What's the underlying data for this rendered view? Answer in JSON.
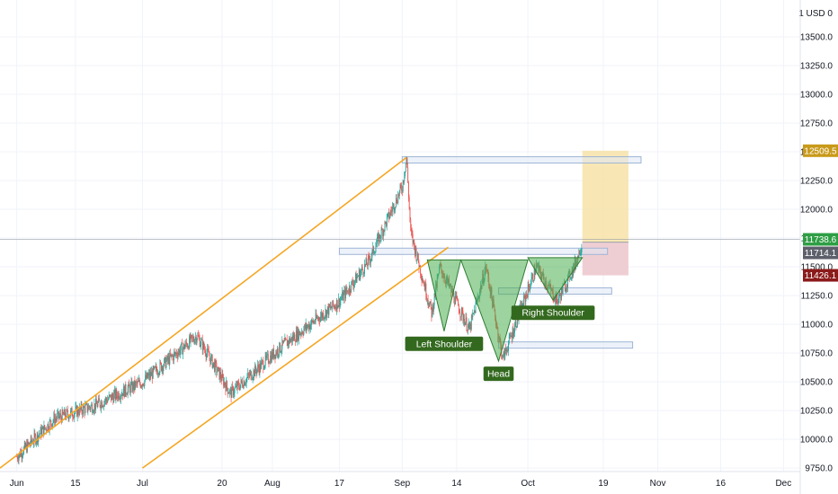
{
  "chart_data": {
    "type": "candlestick",
    "currency_label": "1 USD 0",
    "y_ticks": [
      9750,
      10000,
      10250,
      10500,
      10750,
      11000,
      11250,
      11500,
      11750,
      12000,
      12250,
      12500,
      12750,
      13000,
      13250,
      13500
    ],
    "y_tick_labels": [
      "9750.0",
      "10000.0",
      "10250.0",
      "10500.0",
      "10750.0",
      "11000.0",
      "11250.0",
      "11500.0",
      "11750.0",
      "12000.0",
      "12250.0",
      "12500.0",
      "12750.0",
      "13000.0",
      "13250.0",
      "13500.0"
    ],
    "ylim": [
      9720,
      13820
    ],
    "x_start": "2020-05-28",
    "x_end": "2020-12-05",
    "x_ticks": [
      {
        "date": "2020-06-01",
        "label": "Jun"
      },
      {
        "date": "2020-06-15",
        "label": "15"
      },
      {
        "date": "2020-07-01",
        "label": "Jul"
      },
      {
        "date": "2020-07-20",
        "label": "20"
      },
      {
        "date": "2020-08-01",
        "label": "Aug"
      },
      {
        "date": "2020-08-17",
        "label": "17"
      },
      {
        "date": "2020-09-01",
        "label": "Sep"
      },
      {
        "date": "2020-09-14",
        "label": "14"
      },
      {
        "date": "2020-10-01",
        "label": "Oct"
      },
      {
        "date": "2020-10-19",
        "label": "19"
      },
      {
        "date": "2020-11-01",
        "label": "Nov"
      },
      {
        "date": "2020-11-16",
        "label": "16"
      },
      {
        "date": "2020-12-01",
        "label": "Dec"
      }
    ],
    "grid": true,
    "colors": {
      "up": "#26a69a",
      "down": "#ef5350",
      "channel": "#f5a623",
      "pattern_fill": "#4caf50",
      "label_bg": "#33691e",
      "target_zone": "#f7e3a8",
      "stop_zone": "#ecc5cb",
      "zone_box": "#9fb5d6"
    },
    "price_path": [
      {
        "date": "2020-06-01",
        "close": 9850
      },
      {
        "date": "2020-06-10",
        "close": 10180
      },
      {
        "date": "2020-06-20",
        "close": 10300
      },
      {
        "date": "2020-07-01",
        "close": 10500
      },
      {
        "date": "2020-07-14",
        "close": 10900
      },
      {
        "date": "2020-07-22",
        "close": 10400
      },
      {
        "date": "2020-08-03",
        "close": 10800
      },
      {
        "date": "2020-08-17",
        "close": 11200
      },
      {
        "date": "2020-08-24",
        "close": 11550
      },
      {
        "date": "2020-09-01",
        "close": 12200
      },
      {
        "date": "2020-09-02",
        "close": 12450
      },
      {
        "date": "2020-09-03",
        "close": 11800
      },
      {
        "date": "2020-09-08",
        "close": 11100
      },
      {
        "date": "2020-09-10",
        "close": 11500
      },
      {
        "date": "2020-09-17",
        "close": 10950
      },
      {
        "date": "2020-09-21",
        "close": 11500
      },
      {
        "date": "2020-09-25",
        "close": 10700
      },
      {
        "date": "2020-10-03",
        "close": 11500
      },
      {
        "date": "2020-10-08",
        "close": 11200
      },
      {
        "date": "2020-10-12",
        "close": 11500
      },
      {
        "date": "2020-10-14",
        "close": 11714
      }
    ],
    "channel": {
      "upper": [
        {
          "date": "2020-05-28",
          "price": 9750
        },
        {
          "date": "2020-09-02",
          "price": 12450
        }
      ],
      "lower": [
        {
          "date": "2020-07-01",
          "price": 9750
        },
        {
          "date": "2020-09-12",
          "price": 11670
        }
      ]
    },
    "zones": [
      {
        "date_start": "2020-09-01",
        "date_end": "2020-10-28",
        "price": 12430
      },
      {
        "date_start": "2020-08-17",
        "date_end": "2020-10-20",
        "price": 11635
      },
      {
        "date_start": "2020-09-24",
        "date_end": "2020-10-21",
        "price": 11290
      },
      {
        "date_start": "2020-09-24",
        "date_end": "2020-10-26",
        "price": 10820
      }
    ],
    "pattern": {
      "left_shoulder": {
        "label": "Left Shoulder",
        "top_left": {
          "date": "2020-09-07",
          "price": 11560
        },
        "top_right": {
          "date": "2020-09-15",
          "price": 11560
        },
        "bottom": {
          "date": "2020-09-11",
          "price": 10940
        }
      },
      "head": {
        "label": "Head",
        "top_left": {
          "date": "2020-09-15",
          "price": 11560
        },
        "top_right": {
          "date": "2020-10-01",
          "price": 11560
        },
        "bottom": {
          "date": "2020-09-24",
          "price": 10680
        }
      },
      "right_shoulder": {
        "label": "Right Shoulder",
        "top_left": {
          "date": "2020-10-01",
          "price": 11580
        },
        "top_right": {
          "date": "2020-10-14",
          "price": 11580
        },
        "bottom": {
          "date": "2020-10-07",
          "price": 11210
        }
      }
    },
    "position": {
      "date_start": "2020-10-14",
      "date_end": "2020-10-25",
      "entry": 11714,
      "target": 12509.5,
      "stop": 11426.1
    },
    "price_tags": [
      {
        "price": 12509.5,
        "label": "12509.5",
        "color": "#c99a1a"
      },
      {
        "price": 11738.6,
        "label": "11738.6",
        "color": "#2e9e44"
      },
      {
        "price": 11714.1,
        "label": "11714.1",
        "color": "#5d606b"
      },
      {
        "price": 11426.1,
        "label": "11426.1",
        "color": "#8b1a1a"
      }
    ]
  }
}
